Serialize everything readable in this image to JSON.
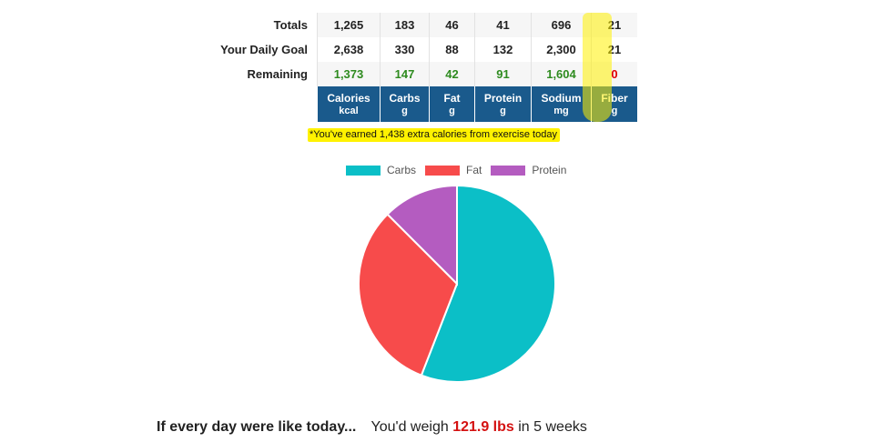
{
  "table": {
    "rows": [
      {
        "label": "Totals",
        "values": [
          "1,265",
          "183",
          "46",
          "41",
          "696",
          "21"
        ]
      },
      {
        "label": "Your Daily Goal",
        "values": [
          "2,638",
          "330",
          "88",
          "132",
          "2,300",
          "21"
        ]
      },
      {
        "label": "Remaining",
        "values": [
          "1,373",
          "147",
          "42",
          "91",
          "1,604",
          "0"
        ]
      }
    ],
    "headers": [
      {
        "name": "Calories",
        "unit": "kcal"
      },
      {
        "name": "Carbs",
        "unit": "g"
      },
      {
        "name": "Fat",
        "unit": "g"
      },
      {
        "name": "Protein",
        "unit": "g"
      },
      {
        "name": "Sodium",
        "unit": "mg"
      },
      {
        "name": "Fiber",
        "unit": "g"
      }
    ]
  },
  "exercise_note": "*You've earned 1,438 extra calories from exercise today",
  "colors": {
    "header_bg": "#1a5a8c",
    "remaining_positive": "#2e8b1f",
    "remaining_zero": "#e00000",
    "highlight": "#fff200"
  },
  "chart_data": {
    "type": "pie",
    "legend_position": "top",
    "series": [
      {
        "name": "Carbs",
        "value": 55.9,
        "color": "#0bbfc7"
      },
      {
        "name": "Fat",
        "value": 31.6,
        "color": "#f74b4b"
      },
      {
        "name": "Protein",
        "value": 12.5,
        "color": "#b45cc0"
      }
    ]
  },
  "projection": {
    "lead": "If every day were like today...",
    "prefix": "You'd weigh",
    "weight": "121.9 lbs",
    "suffix": "in 5 weeks"
  }
}
